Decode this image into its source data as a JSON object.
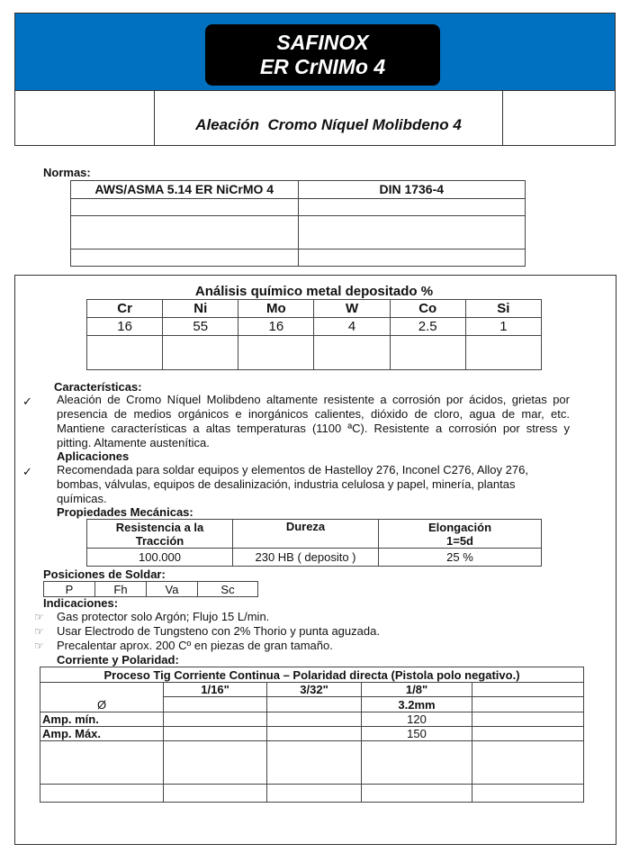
{
  "header": {
    "brand": "SAFINOX",
    "product": "ER CrNIMo 4",
    "subtitle": "Aleación  Cromo Níquel Molibdeno 4",
    "colors": {
      "banner": "#0070c0",
      "badge": "#000000"
    }
  },
  "normas": {
    "label": "Normas:",
    "rows": [
      [
        "AWS/ASMA 5.14 ER NiCrMO 4",
        "DIN 1736-4"
      ],
      [
        "",
        ""
      ],
      [
        "",
        ""
      ],
      [
        "",
        ""
      ]
    ]
  },
  "analisis": {
    "title": "Análisis químico metal depositado %",
    "headers": [
      "Cr",
      "Ni",
      "Mo",
      "W",
      "Co",
      "Si"
    ],
    "values": [
      "16",
      "55",
      "16",
      "4",
      "2.5",
      "1"
    ]
  },
  "caracteristicas": {
    "label": "Características:",
    "text": "Aleación de Cromo Níquel Molibdeno altamente resistente a corrosión por ácidos,   grietas por presencia de medios orgánicos e inorgánicos calientes, dióxido de cloro, agua de mar, etc. Mantiene características a altas temperaturas (1100 ªC). Resistente a corrosión por stress y pitting. Altamente austenítica.",
    "bullet_icon": "check-icon"
  },
  "aplicaciones": {
    "label": "Aplicaciones",
    "text": "Recomendada para soldar equipos y elementos de Hastelloy 276, Inconel C276,  Alloy 276, bombas, válvulas, equipos de desalinización,  industria celulosa y papel, minería, plantas químicas."
  },
  "mecanicas": {
    "label": "Propiedades Mecánicas:",
    "headers": [
      "Resistencia a la Tracción",
      "Dureza",
      "Elongación 1=5d"
    ],
    "values": [
      "100.000",
      "230 HB ( deposito )",
      "25 %"
    ]
  },
  "posiciones": {
    "label": "Posiciones de Soldar:",
    "items": [
      "P",
      "Fh",
      "Va",
      "Sc"
    ]
  },
  "indicaciones": {
    "label": "Indicaciones:",
    "bullet_icon": "pointing-hand-icon",
    "items": [
      "Gas protector  solo Argón; Flujo 15 L/min.",
      "Usar Electrodo de Tungsteno con 2% Thorio y punta aguzada.",
      "Precalentar aprox. 200 Cº  en piezas de gran tamaño."
    ]
  },
  "corriente": {
    "label": "Corriente y Polaridad:",
    "title": "Proceso Tig Corriente Continua – Polaridad directa (Pistola polo negativo.)",
    "diameter_symbol": "Ø",
    "inches": [
      "1/16\"",
      "3/32\"",
      "1/8\"",
      ""
    ],
    "mm": [
      "",
      "",
      "3.2mm",
      ""
    ],
    "amp_min_label": "Amp. mín.",
    "amp_min": [
      "",
      "",
      "120",
      ""
    ],
    "amp_max_label": "Amp. Máx.",
    "amp_max": [
      "",
      "",
      "150",
      ""
    ]
  }
}
